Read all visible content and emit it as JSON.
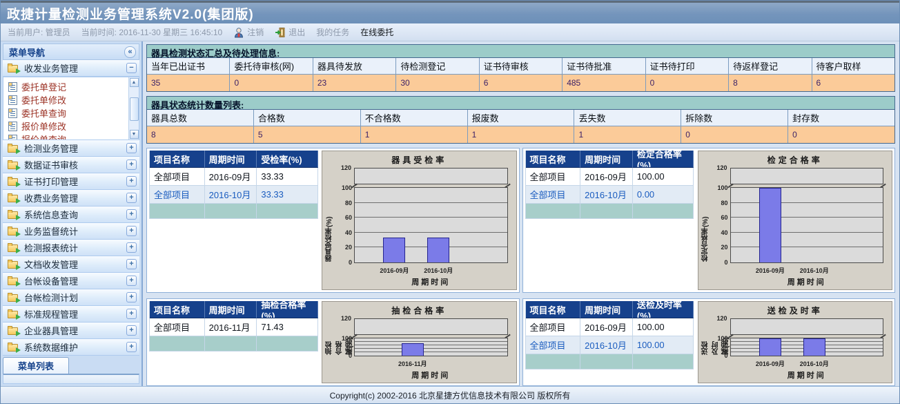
{
  "title_bar": {
    "title": "政捷计量检测业务管理系统V2.0(集团版)"
  },
  "info_bar": {
    "user_label": "当前用户: 管理员",
    "time_label": "当前时间: 2016-11-30 星期三 16:45:10",
    "logout_label": "注销",
    "exit_label": "退出",
    "my_tasks_label": "我的任务",
    "online_label": "在线委托"
  },
  "sidebar": {
    "header": "菜单导航",
    "collapse_glyph": "«",
    "groups": [
      {
        "label": "收发业务管理",
        "expanded": true
      },
      {
        "label": "检测业务管理",
        "expanded": false
      },
      {
        "label": "数据证书审核",
        "expanded": false
      },
      {
        "label": "证书打印管理",
        "expanded": false
      },
      {
        "label": "收费业务管理",
        "expanded": false
      },
      {
        "label": "系统信息查询",
        "expanded": false
      },
      {
        "label": "业务监督统计",
        "expanded": false
      },
      {
        "label": "检测报表统计",
        "expanded": false
      },
      {
        "label": "文档收发管理",
        "expanded": false
      },
      {
        "label": "台帐设备管理",
        "expanded": false
      },
      {
        "label": "台帐检测计划",
        "expanded": false
      },
      {
        "label": "标准规程管理",
        "expanded": false
      },
      {
        "label": "企业器具管理",
        "expanded": false
      },
      {
        "label": "系统数据维护",
        "expanded": false
      }
    ],
    "submenu_items": [
      "委托单登记",
      "委托单修改",
      "委托单查询",
      "报价单修改",
      "报价单查询"
    ],
    "bottom_tab": "菜单列表"
  },
  "summary_section": {
    "title": "器具检测状态汇总及待处理信息:",
    "columns": [
      "当年已出证书",
      "委托待审核(网)",
      "器具待发放",
      "待检测登记",
      "证书待审核",
      "证书待批准",
      "证书待打印",
      "待返样登记",
      "待客户取样"
    ],
    "values": [
      "35",
      "0",
      "23",
      "30",
      "6",
      "485",
      "0",
      "8",
      "6"
    ]
  },
  "status_section": {
    "title": "器具状态统计数量列表:",
    "columns": [
      "器具总数",
      "合格数",
      "不合格数",
      "报废数",
      "丢失数",
      "拆除数",
      "封存数"
    ],
    "values": [
      "8",
      "5",
      "1",
      "1",
      "1",
      "0",
      "0"
    ]
  },
  "panels": [
    {
      "headers": [
        "项目名称",
        "周期时间",
        "受检率(%)"
      ],
      "rows": [
        [
          "全部项目",
          "2016-09月",
          "33.33"
        ],
        [
          "全部项目",
          "2016-10月",
          "33.33"
        ]
      ]
    },
    {
      "headers": [
        "项目名称",
        "周期时间",
        "检定合格率(%)"
      ],
      "rows": [
        [
          "全部项目",
          "2016-09月",
          "100.00"
        ],
        [
          "全部项目",
          "2016-10月",
          "0.00"
        ]
      ]
    },
    {
      "headers": [
        "项目名称",
        "周期时间",
        "抽检合格率(%)"
      ],
      "rows": [
        [
          "全部项目",
          "2016-11月",
          "71.43"
        ]
      ]
    },
    {
      "headers": [
        "项目名称",
        "周期时间",
        "送检及时率(%)"
      ],
      "rows": [
        [
          "全部项目",
          "2016-09月",
          "100.00"
        ],
        [
          "全部项目",
          "2016-10月",
          "100.00"
        ]
      ]
    }
  ],
  "chart_data": [
    {
      "type": "bar",
      "title": "器具受检率",
      "ylabel": "器具受检率(%)",
      "xlabel": "周期时间",
      "categories": [
        "2016-09月",
        "2016-10月"
      ],
      "values": [
        33.33,
        33.33
      ],
      "ylim": [
        0,
        120
      ],
      "yticks": [
        0,
        20,
        40,
        60,
        80,
        100,
        120
      ],
      "axis_break": true,
      "grid": true
    },
    {
      "type": "bar",
      "title": "检定合格率",
      "ylabel": "检定合格率(%)",
      "xlabel": "周期时间",
      "categories": [
        "2016-09月",
        "2016-10月"
      ],
      "values": [
        100.0,
        0.0
      ],
      "ylim": [
        0,
        120
      ],
      "yticks": [
        0,
        20,
        40,
        60,
        80,
        100,
        120
      ],
      "axis_break": true,
      "grid": true
    },
    {
      "type": "bar",
      "title": "抽检合格率",
      "ylabel": "抽检合格率(%)",
      "xlabel": "周期时间",
      "categories": [
        "2016-11月"
      ],
      "values": [
        71.43
      ],
      "ylim": [
        0,
        120
      ],
      "yticks": [
        0,
        20,
        40,
        60,
        80,
        100,
        120
      ],
      "axis_break": true,
      "grid": true
    },
    {
      "type": "bar",
      "title": "送检及时率",
      "ylabel": "送检及时率(%)",
      "xlabel": "周期时间",
      "categories": [
        "2016-09月",
        "2016-10月"
      ],
      "values": [
        100.0,
        100.0
      ],
      "ylim": [
        0,
        120
      ],
      "yticks": [
        0,
        20,
        40,
        60,
        80,
        100,
        120
      ],
      "axis_break": true,
      "grid": true
    }
  ],
  "footer": {
    "text": "Copyright(c) 2002-2016 北京星捷方优信息技术有限公司  版权所有"
  },
  "colors": {
    "bar_fill": "#7b7be8",
    "value_cell_bg": "#fbcb99",
    "section_title_bg": "#9cccc9",
    "panel_header_bg": "#16418c",
    "title_bar_bg": "#7495bc",
    "submenu_text": "#9c3326"
  }
}
